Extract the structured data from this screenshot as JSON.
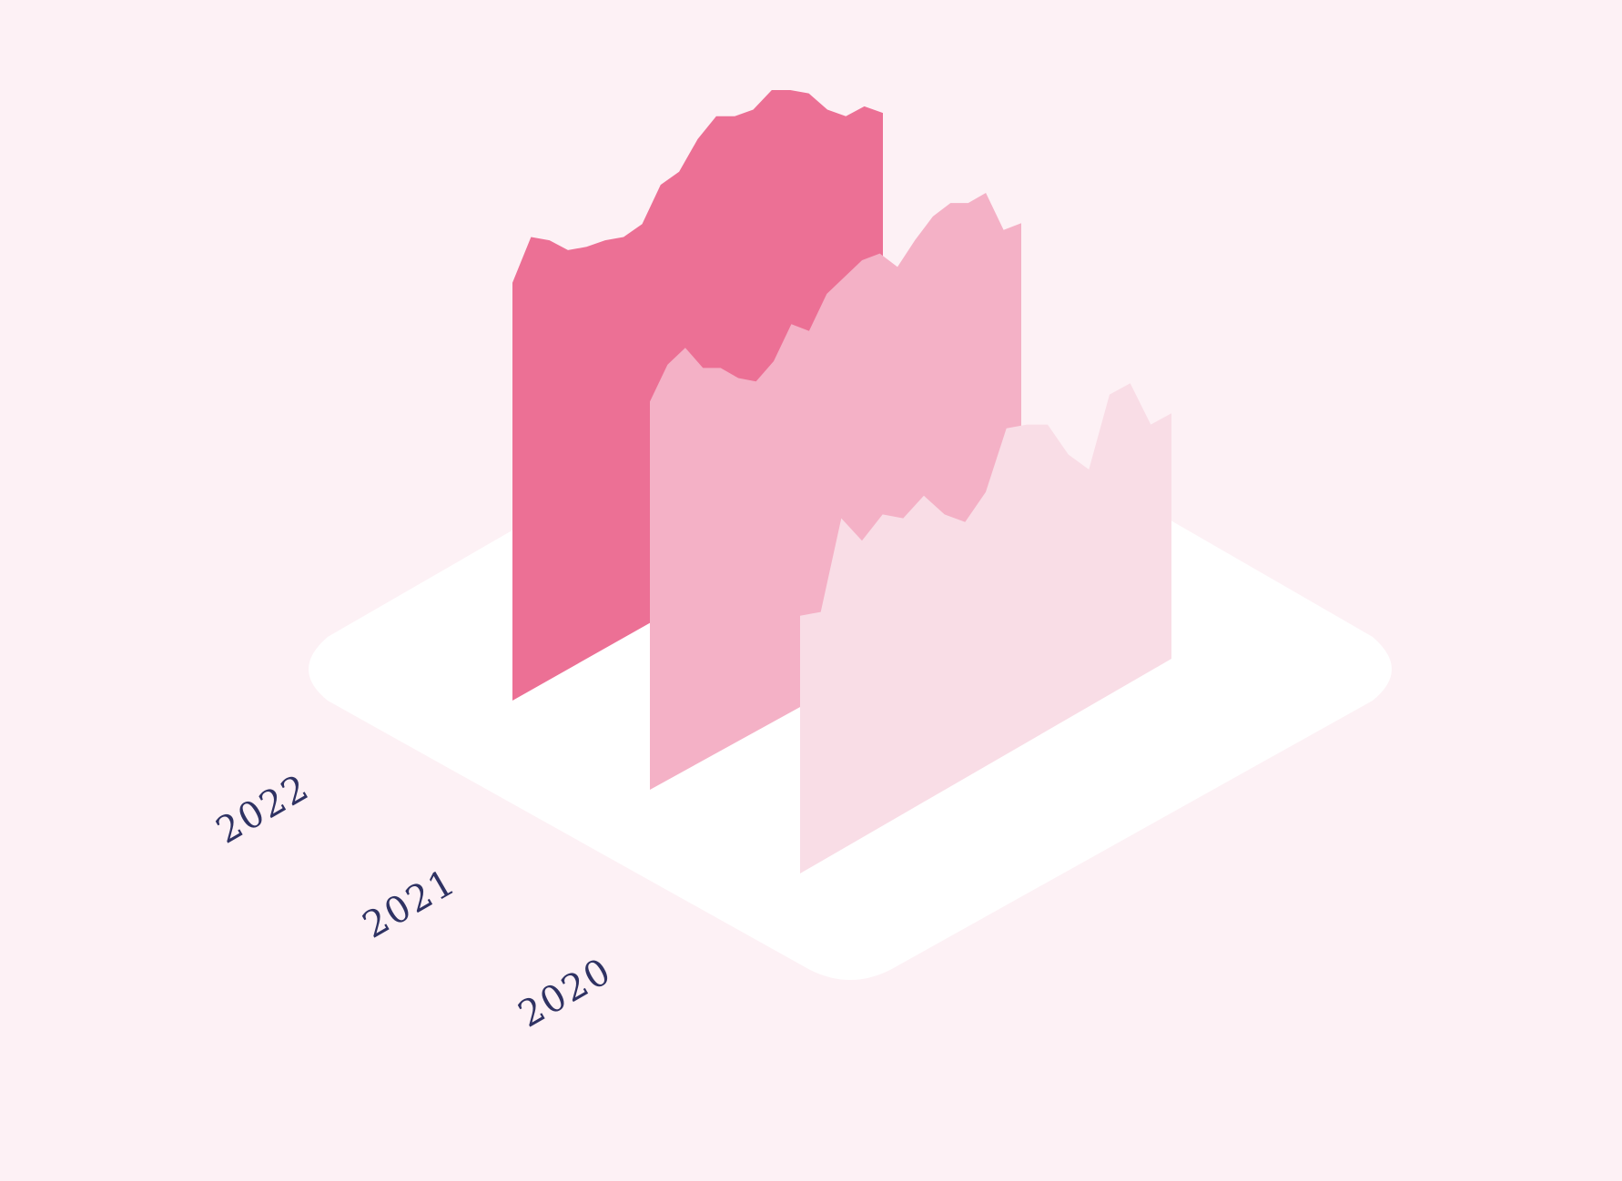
{
  "colors": {
    "background": "#fdf1f5",
    "platform": "#ffffff",
    "label": "#2f3263"
  },
  "chart_data": {
    "type": "area",
    "style": "isometric-3d",
    "title": "",
    "xlabel": "",
    "ylabel": "",
    "grid": false,
    "legend": "none",
    "ylim": [
      0,
      100
    ],
    "series": [
      {
        "name": "2022",
        "color": "#ec7095",
        "values": [
          41,
          55,
          54,
          51,
          52,
          54,
          55,
          59,
          71,
          75,
          85,
          92,
          92,
          94,
          100,
          100,
          99,
          94,
          92,
          95,
          93
        ]
      },
      {
        "name": "2021",
        "color": "#f4b1c6",
        "values": [
          38,
          49,
          54,
          48,
          48,
          45,
          44,
          50,
          61,
          59,
          70,
          75,
          80,
          82,
          78,
          86,
          93,
          97,
          97,
          100,
          89,
          91
        ]
      },
      {
        "name": "2020",
        "color": "#f9dde6",
        "values": [
          36,
          37,
          62,
          56,
          63,
          62,
          68,
          63,
          61,
          69,
          86,
          87,
          87,
          79,
          75,
          95,
          98,
          87,
          90
        ]
      }
    ]
  }
}
